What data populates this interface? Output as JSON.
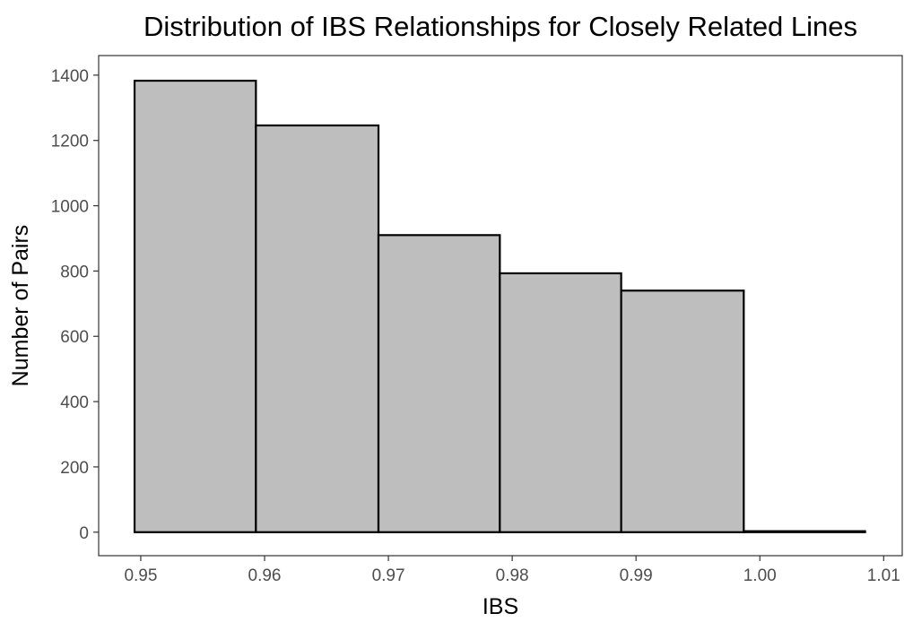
{
  "chart_data": {
    "type": "bar",
    "title": "Distribution of IBS Relationships for Closely Related Lines",
    "xlabel": "IBS",
    "ylabel": "Number of Pairs",
    "bins": [
      {
        "start": 0.9495,
        "end": 0.9593,
        "value": 1383
      },
      {
        "start": 0.9593,
        "end": 0.9692,
        "value": 1246
      },
      {
        "start": 0.9692,
        "end": 0.979,
        "value": 910
      },
      {
        "start": 0.979,
        "end": 0.9888,
        "value": 793
      },
      {
        "start": 0.9888,
        "end": 0.9987,
        "value": 740
      },
      {
        "start": 0.9987,
        "end": 1.0085,
        "value": 3
      }
    ],
    "xlim": [
      0.9466,
      1.0115
    ],
    "ylim": [
      -72,
      1460
    ],
    "x_ticks": [
      "0.95",
      "0.96",
      "0.97",
      "0.98",
      "0.99",
      "1.00",
      "1.01"
    ],
    "y_ticks": [
      "0",
      "200",
      "400",
      "600",
      "800",
      "1000",
      "1200",
      "1400"
    ],
    "bar_fill": "#bebebe",
    "bar_stroke": "#000000",
    "panel_border": "#333333",
    "tick_color": "#333333",
    "background": "#ffffff",
    "grid": false,
    "legend": "none"
  }
}
